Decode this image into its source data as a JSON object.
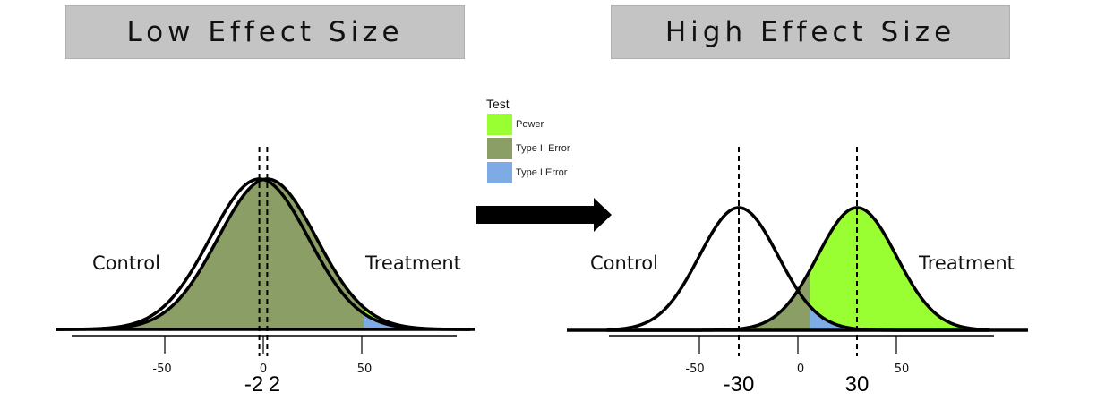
{
  "titles": {
    "low": "Low Effect Size",
    "high": "High Effect Size"
  },
  "legend": {
    "title": "Test",
    "items": [
      {
        "label": "Power",
        "color": "#99ff33"
      },
      {
        "label": "Type II Error",
        "color": "#8a9e65"
      },
      {
        "label": "Type I Error",
        "color": "#7eabe6"
      }
    ]
  },
  "colors": {
    "power": "#99ff33",
    "type2": "#8a9e65",
    "type1": "#7eabe6",
    "curve": "#000000"
  },
  "arrow_icon": "right-arrow-icon",
  "panels": {
    "low": {
      "control_label": "Control",
      "treatment_label": "Treatment",
      "ticks": [
        "-50",
        "0",
        "50"
      ],
      "tick_values": [
        -50,
        0,
        50
      ],
      "means": [
        -2,
        2
      ],
      "mean_labels": [
        "-2",
        "2"
      ],
      "critical_value": 51
    },
    "high": {
      "control_label": "Control",
      "treatment_label": "Treatment",
      "ticks": [
        "-50",
        "0",
        "50"
      ],
      "tick_values": [
        -50,
        0,
        50
      ],
      "means": [
        -30,
        30
      ],
      "mean_labels": [
        "-30",
        "30"
      ],
      "critical_value": 6
    }
  }
}
